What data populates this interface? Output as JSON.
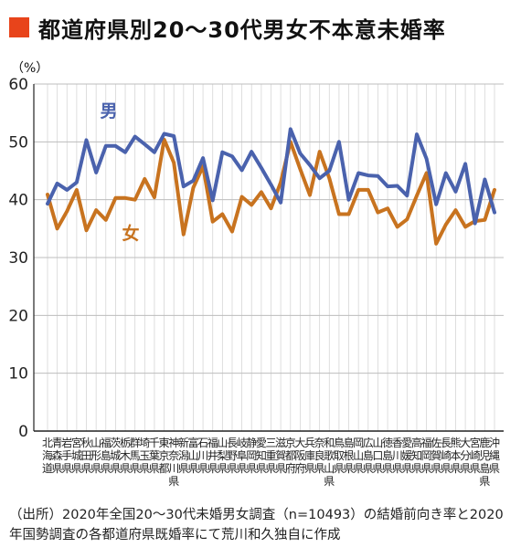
{
  "title": "都道府県別20〜30代男女不本意未婚率",
  "title_marker_color": "#e8441b",
  "unit": "（%）",
  "source": "（出所）2020年全国20〜30代未婚男女調査（n=10493）の結婚前向き率と2020年国勢調査の各都道府県既婚率にて荒川和久独自に作成",
  "chart_data": {
    "type": "line",
    "title": "都道府県別20〜30代男女不本意未婚率",
    "ylabel": "（%）",
    "ylim": [
      0,
      60
    ],
    "yticks": [
      0,
      10,
      20,
      30,
      40,
      50,
      60
    ],
    "grid": true,
    "categories": [
      "北海道",
      "青森県",
      "岩手県",
      "宮城県",
      "秋田県",
      "山形県",
      "福島県",
      "茨城県",
      "栃木県",
      "群馬県",
      "埼玉県",
      "千葉県",
      "東京都",
      "神奈川県",
      "新潟県",
      "富山県",
      "石川県",
      "福井県",
      "山梨県",
      "長野県",
      "岐阜県",
      "静岡県",
      "愛知県",
      "三重県",
      "滋賀県",
      "京都府",
      "大阪府",
      "兵庫県",
      "奈良県",
      "和歌山県",
      "鳥取県",
      "島根県",
      "岡山県",
      "広島県",
      "山口県",
      "徳島県",
      "香川県",
      "愛媛県",
      "高知県",
      "福岡県",
      "佐賀県",
      "長崎県",
      "熊本県",
      "大分県",
      "宮崎県",
      "鹿児島県",
      "沖縄県"
    ],
    "series": [
      {
        "name": "男",
        "color": "#4a62ad",
        "values": [
          39.3,
          42.8,
          41.7,
          43.0,
          50.3,
          44.7,
          49.3,
          49.3,
          48.2,
          50.9,
          49.6,
          48.2,
          51.4,
          51.0,
          42.3,
          43.3,
          47.2,
          39.9,
          48.2,
          47.5,
          45.1,
          48.3,
          45.5,
          42.6,
          39.5,
          52.2,
          48.0,
          46.0,
          43.7,
          45.0,
          50.0,
          40.0,
          44.6,
          44.2,
          44.1,
          42.3,
          42.4,
          40.7,
          51.3,
          47.1,
          39.2,
          44.6,
          41.4,
          46.2,
          35.9,
          43.5,
          37.8
        ]
      },
      {
        "name": "女",
        "color": "#c8731f",
        "values": [
          40.9,
          35.0,
          38.0,
          41.7,
          34.7,
          38.2,
          36.5,
          40.3,
          40.3,
          40.0,
          43.6,
          40.4,
          50.4,
          46.4,
          34.0,
          42.1,
          45.8,
          36.2,
          37.5,
          34.5,
          40.5,
          39.1,
          41.3,
          38.5,
          43.0,
          50.0,
          45.3,
          40.8,
          48.3,
          43.7,
          37.5,
          37.5,
          41.7,
          41.7,
          37.8,
          38.5,
          35.3,
          36.6,
          40.7,
          44.6,
          32.4,
          35.7,
          38.2,
          35.3,
          36.3,
          36.5,
          41.7
        ]
      }
    ],
    "annotations": [
      {
        "text": "男",
        "series": "男"
      },
      {
        "text": "女",
        "series": "女"
      }
    ]
  }
}
